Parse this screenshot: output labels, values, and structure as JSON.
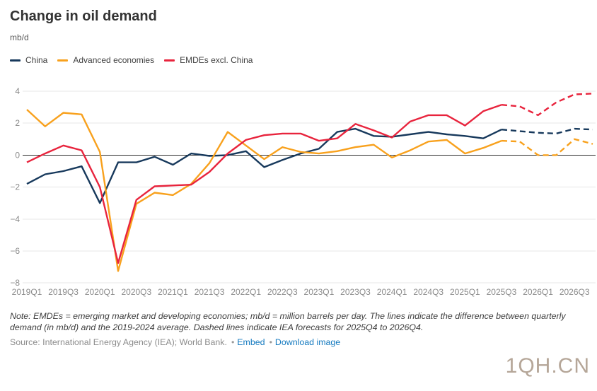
{
  "header": {
    "title": "Change in oil demand",
    "units": "mb/d"
  },
  "legend": {
    "items": [
      {
        "label": "China",
        "color": "#17395c"
      },
      {
        "label": "Advanced economies",
        "color": "#f8a11d"
      },
      {
        "label": "EMDEs excl. China",
        "color": "#e8243d"
      }
    ]
  },
  "chart_data": {
    "type": "line",
    "title": "Change in oil demand",
    "ylabel": "mb/d",
    "x": [
      "2019Q1",
      "2019Q2",
      "2019Q3",
      "2019Q4",
      "2020Q1",
      "2020Q2",
      "2020Q3",
      "2020Q4",
      "2021Q1",
      "2021Q2",
      "2021Q3",
      "2021Q4",
      "2022Q1",
      "2022Q2",
      "2022Q3",
      "2022Q4",
      "2023Q1",
      "2023Q2",
      "2023Q3",
      "2023Q4",
      "2024Q1",
      "2024Q2",
      "2024Q3",
      "2024Q4",
      "2025Q1",
      "2025Q2",
      "2025Q3",
      "2025Q4",
      "2026Q1",
      "2026Q2",
      "2026Q3",
      "2026Q4"
    ],
    "xtick_shown_every": 2,
    "series": [
      {
        "name": "China",
        "color": "#17395c",
        "values": [
          -1.8,
          -1.2,
          -1.0,
          -0.7,
          -3.0,
          -0.45,
          -0.45,
          -0.1,
          -0.6,
          0.1,
          -0.05,
          0.0,
          0.25,
          -0.75,
          -0.3,
          0.1,
          0.4,
          1.45,
          1.65,
          1.2,
          1.15,
          1.3,
          1.45,
          1.3,
          1.2,
          1.05,
          1.6,
          1.5,
          1.4,
          1.35,
          1.65,
          1.6
        ]
      },
      {
        "name": "Advanced economies",
        "color": "#f8a11d",
        "values": [
          2.85,
          1.8,
          2.65,
          2.55,
          0.2,
          -7.25,
          -3.05,
          -2.35,
          -2.5,
          -1.8,
          -0.5,
          1.45,
          0.6,
          -0.25,
          0.5,
          0.2,
          0.1,
          0.25,
          0.5,
          0.65,
          -0.15,
          0.3,
          0.85,
          0.95,
          0.1,
          0.45,
          0.9,
          0.85,
          0.0,
          0.0,
          1.0,
          0.7
        ]
      },
      {
        "name": "EMDEs excl. China",
        "color": "#e8243d",
        "values": [
          -0.45,
          0.1,
          0.6,
          0.3,
          -2.0,
          -6.75,
          -2.8,
          -1.95,
          -1.9,
          -1.85,
          -1.05,
          0.1,
          0.95,
          1.25,
          1.35,
          1.35,
          0.9,
          1.05,
          1.95,
          1.55,
          1.1,
          2.1,
          2.5,
          2.5,
          1.85,
          2.75,
          3.15,
          3.05,
          2.5,
          3.3,
          3.8,
          3.85
        ]
      }
    ],
    "forecast_start_index": 26,
    "forecast_style": "dashed",
    "forecast_note": "Dashed lines indicate IEA forecasts for 2025Q4 to 2026Q4",
    "ylim": [
      -8,
      4
    ],
    "yticks": [
      4,
      2,
      0,
      -2,
      -4,
      -6,
      -8
    ],
    "zero_line": true,
    "grid": "horizontal",
    "legend_position": "top-left"
  },
  "note": {
    "text": "Note: EMDEs = emerging market and developing economies; mb/d = million barrels per day. The lines indicate the difference between quarterly demand (in mb/d) and the 2019-2024 average. Dashed lines indicate IEA forecasts for 2025Q4 to 2026Q4."
  },
  "source": {
    "label": "Source: International Energy Agency (IEA); World Bank.",
    "bullet": "•",
    "links": [
      {
        "label": "Embed"
      },
      {
        "label": "Download image"
      }
    ]
  },
  "watermark": {
    "text": "1QH.CN"
  }
}
